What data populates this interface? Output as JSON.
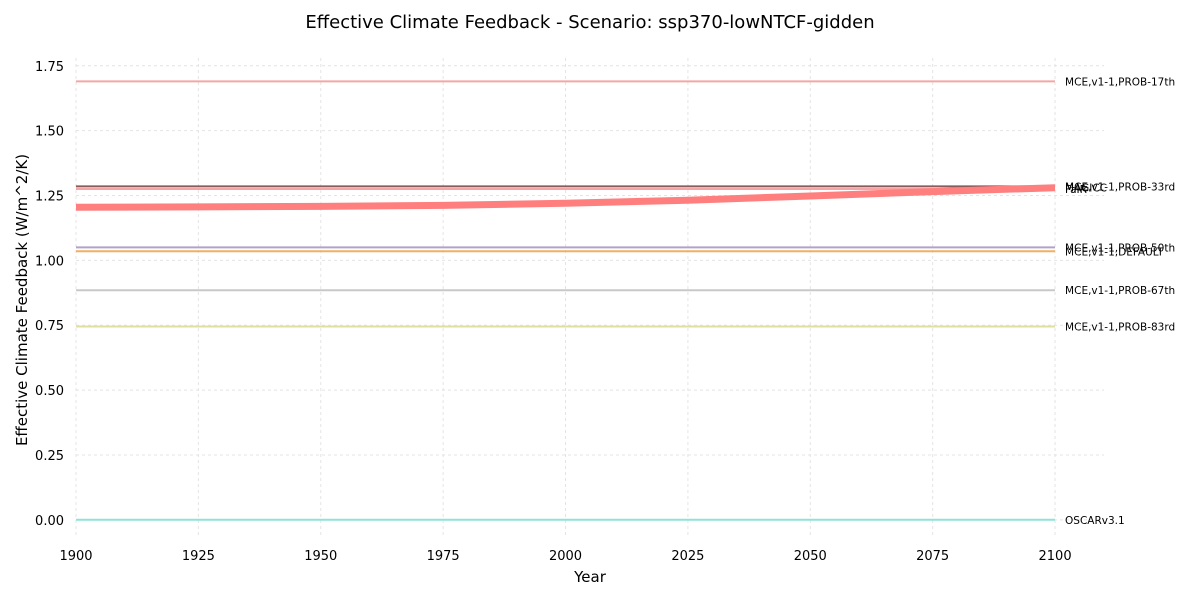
{
  "chart_data": {
    "type": "line",
    "title": "Effective Climate Feedback - Scenario: ssp370-lowNTCF-gidden",
    "xlabel": "Year",
    "ylabel": "Effective Climate Feedback (W/m^2/K)",
    "xlim": [
      1900,
      2110
    ],
    "ylim": [
      -0.07,
      1.78
    ],
    "x_ticks": [
      "1900",
      "1925",
      "1950",
      "1975",
      "2000",
      "2025",
      "2050",
      "2075",
      "2100"
    ],
    "y_ticks": [
      "0.00",
      "0.25",
      "0.50",
      "0.75",
      "1.00",
      "1.25",
      "1.50",
      "1.75"
    ],
    "grid": true,
    "series": [
      {
        "name": "MCE,v1-1,PROB-17th",
        "color": "#f4a6a6",
        "width": 2,
        "x": [
          1900,
          2100
        ],
        "y": [
          1.69,
          1.69
        ]
      },
      {
        "name": "MCE,v1-1,PROB-33rd",
        "color": "#8b5a5a",
        "width": 2,
        "x": [
          1900,
          2100
        ],
        "y": [
          1.285,
          1.285
        ]
      },
      {
        "name": "FaIR",
        "color": "#f4a6a6",
        "width": 2,
        "x": [
          1900,
          2100
        ],
        "y": [
          1.275,
          1.275
        ]
      },
      {
        "name": "MCE,v1-1,PROB-50th",
        "color": "#b3a0cc",
        "width": 2,
        "x": [
          1900,
          2100
        ],
        "y": [
          1.05,
          1.05
        ]
      },
      {
        "name": "MCE,v1-1,DEFAULT",
        "color": "#f0b060",
        "width": 2,
        "x": [
          1900,
          2100
        ],
        "y": [
          1.035,
          1.035
        ]
      },
      {
        "name": "MCE,v1-1,PROB-67th",
        "color": "#c8c8c8",
        "width": 2,
        "x": [
          1900,
          2100
        ],
        "y": [
          0.885,
          0.885
        ]
      },
      {
        "name": "MCE,v1-1,PROB-83rd",
        "color": "#dfe0a0",
        "width": 2,
        "x": [
          1900,
          2100
        ],
        "y": [
          0.745,
          0.745
        ]
      },
      {
        "name": "OSCARv3.1",
        "color": "#8fe3d6",
        "width": 2,
        "x": [
          1900,
          2100
        ],
        "y": [
          0.0,
          0.0
        ]
      },
      {
        "name": "MAGICC",
        "color": "#ff7f7f",
        "width": 7,
        "x": [
          1900,
          1925,
          1950,
          1975,
          2000,
          2025,
          2050,
          2075,
          2100
        ],
        "y": [
          1.205,
          1.206,
          1.208,
          1.212,
          1.22,
          1.232,
          1.248,
          1.265,
          1.28
        ]
      }
    ]
  }
}
